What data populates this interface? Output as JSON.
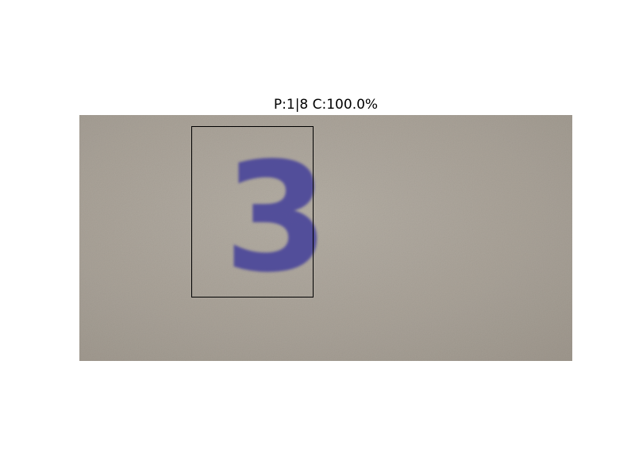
{
  "header": {
    "caption": "P:1|8 C:100.0%"
  },
  "photo": {
    "surface_color": "#a9a298",
    "digit_glyph": "3",
    "digit_color": "#4a449a",
    "box_color": "#000000"
  }
}
